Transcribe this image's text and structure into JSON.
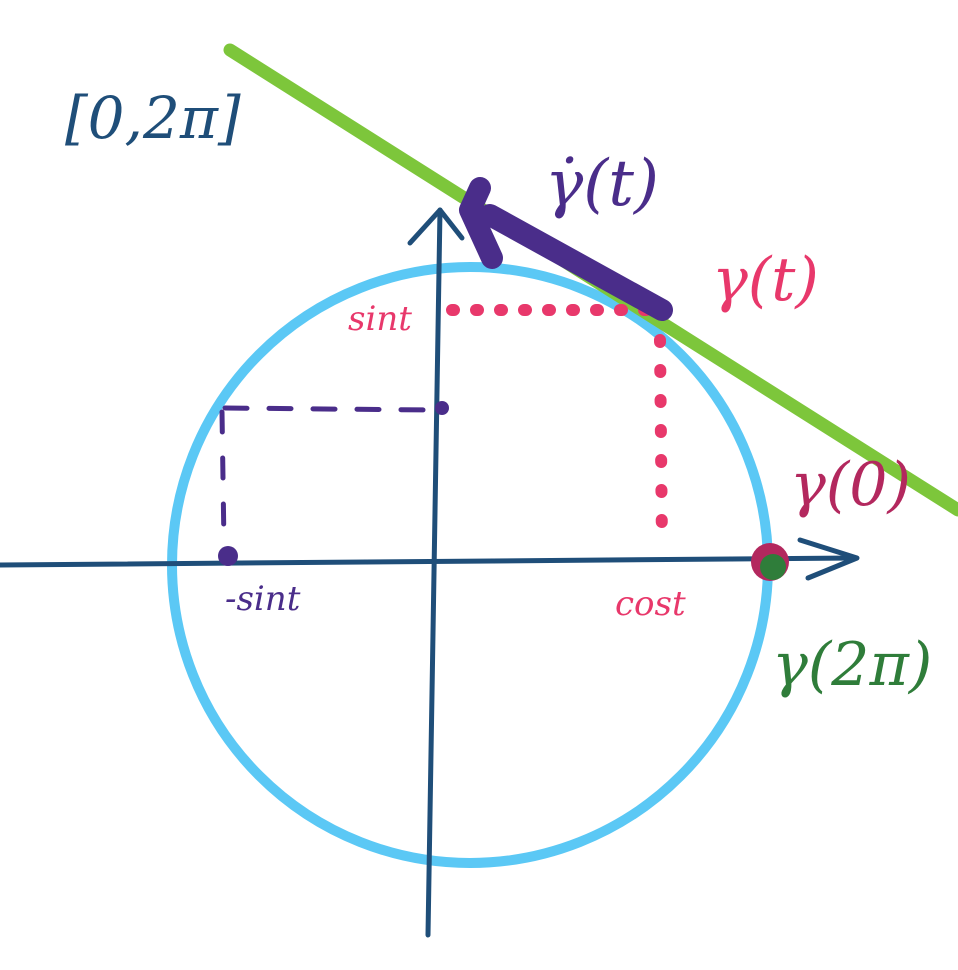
{
  "diagram": {
    "interval_label": "[0,2π]",
    "velocity_label": "γ̇(t)",
    "curve_point_label": "γ(t)",
    "start_point_label": "γ(0)",
    "end_point_label": "γ(2π)",
    "sin_label": "sint",
    "cos_label": "cost",
    "neg_sin_label": "-sint",
    "colors": {
      "circle": "#5bc8f5",
      "axes": "#1f4e79",
      "tangent_line": "#7dc63b",
      "velocity_vector": "#4a2d8a",
      "projection": "#e8386b",
      "start_point": "#b3285e",
      "end_point": "#2f7d3a",
      "rotated_projection": "#4a2d8a"
    }
  }
}
